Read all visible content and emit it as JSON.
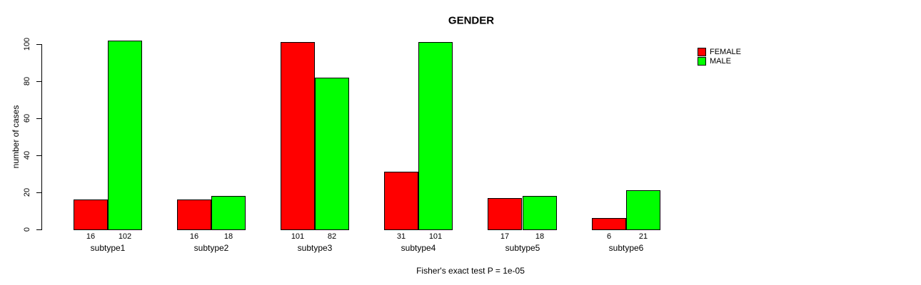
{
  "title": "GENDER",
  "caption": "Fisher's exact test P = 1e-05",
  "colors": {
    "female": "#ff0000",
    "male": "#00ff00",
    "axis": "#000000",
    "background": "#ffffff"
  },
  "chart_data": {
    "type": "bar",
    "title": "GENDER",
    "xlabel": "",
    "ylabel": "number of cases",
    "categories": [
      "subtype1",
      "subtype2",
      "subtype3",
      "subtype4",
      "subtype5",
      "subtype6"
    ],
    "series": [
      {
        "name": "FEMALE",
        "color": "#ff0000",
        "values": [
          16,
          16,
          101,
          31,
          17,
          6
        ]
      },
      {
        "name": "MALE",
        "color": "#00ff00",
        "values": [
          102,
          18,
          82,
          101,
          18,
          21
        ]
      }
    ],
    "bar_value_labels": [
      [
        "16",
        "102"
      ],
      [
        "16",
        "18"
      ],
      [
        "101",
        "82"
      ],
      [
        "31",
        "101"
      ],
      [
        "17",
        "18"
      ],
      [
        "6",
        "21"
      ]
    ],
    "yticks": [
      "0",
      "20",
      "40",
      "60",
      "80",
      "100"
    ],
    "ylim": [
      0,
      102
    ],
    "grid": false,
    "legend_position": "top-right",
    "legend_entries": [
      "FEMALE",
      "MALE"
    ],
    "annotation": "Fisher's exact test P = 1e-05"
  }
}
